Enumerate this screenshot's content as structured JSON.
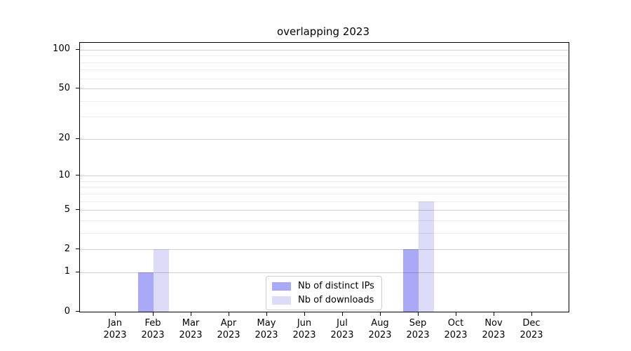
{
  "title": "overlapping 2023",
  "chart_data": {
    "type": "bar",
    "title": "overlapping 2023",
    "xlabel": "",
    "ylabel": "",
    "categories": [
      "Jan 2023",
      "Feb 2023",
      "Mar 2023",
      "Apr 2023",
      "May 2023",
      "Jun 2023",
      "Jul 2023",
      "Aug 2023",
      "Sep 2023",
      "Oct 2023",
      "Nov 2023",
      "Dec 2023"
    ],
    "x_tick_month_labels": [
      "Jan",
      "Feb",
      "Mar",
      "Apr",
      "May",
      "Jun",
      "Jul",
      "Aug",
      "Sep",
      "Oct",
      "Nov",
      "Dec"
    ],
    "x_tick_year_label": "2023",
    "series": [
      {
        "name": "Nb of distinct IPs",
        "color": "#a9a9f7",
        "values": [
          0,
          1,
          0,
          0,
          0,
          0,
          0,
          0,
          2,
          0,
          0,
          0
        ]
      },
      {
        "name": "Nb of downloads",
        "color": "#dcdcf9",
        "values": [
          0,
          2,
          0,
          0,
          0,
          0,
          0,
          0,
          6,
          0,
          0,
          0
        ]
      }
    ],
    "y_scale": "log1p",
    "ylim": [
      0,
      113
    ],
    "y_major_ticks": [
      0,
      1,
      2,
      5,
      10,
      20,
      50,
      100
    ],
    "y_minor_gridlines": [
      3,
      4,
      6,
      7,
      8,
      9,
      30,
      40,
      60,
      70,
      80,
      90
    ],
    "grid": true,
    "legend_position": "lower center"
  },
  "colors": {
    "background": "#ffffff",
    "spine": "#000000",
    "grid_major": "#d2d2d2",
    "grid_minor": "#ececec",
    "series_distinct_ips": "#a9a9f7",
    "series_downloads": "#dcdcf9",
    "legend_border": "#cccccc"
  }
}
